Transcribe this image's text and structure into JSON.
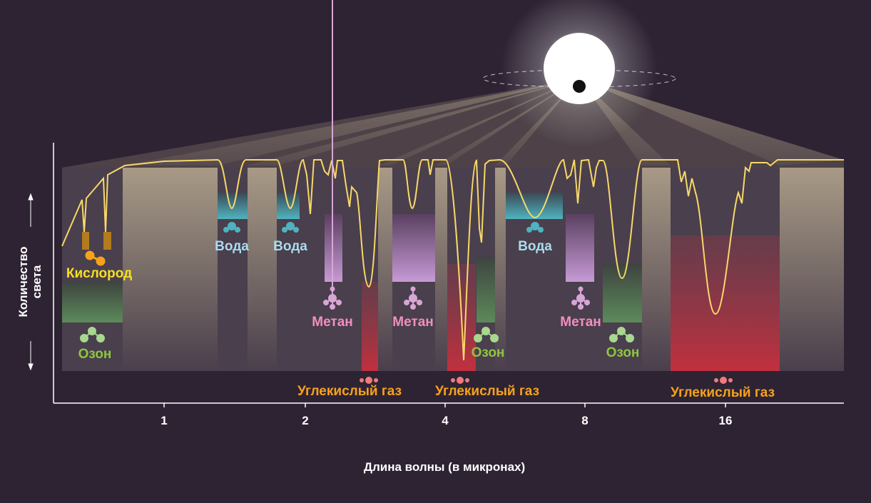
{
  "axes": {
    "x_title": "Длина волны (в микронах)",
    "y_title_line1": "Количество",
    "y_title_line2": "света",
    "x_ticks": [
      "1",
      "2",
      "4",
      "8",
      "16"
    ],
    "x_scale": "log2"
  },
  "molecules": {
    "oxygen": {
      "label": "Кислород",
      "color": "#f5e020"
    },
    "ozone": {
      "label": "Озон",
      "color": "#8dc63f"
    },
    "water": {
      "label": "Вода",
      "color": "#a9dcef"
    },
    "methane": {
      "label": "Метан",
      "color": "#f08fbf"
    },
    "co2": {
      "label": "Углекислый газ",
      "color": "#f7a21b"
    }
  },
  "colors": {
    "background": "#2e2333",
    "spectrum_line": "#f7d86a",
    "water_band": "#4fb3bf",
    "methane_band": "#c79ad6",
    "co2_band": "#c2303e",
    "ozone_band": "#5c8a5a",
    "oxygen_band": "#b47a1e"
  }
}
